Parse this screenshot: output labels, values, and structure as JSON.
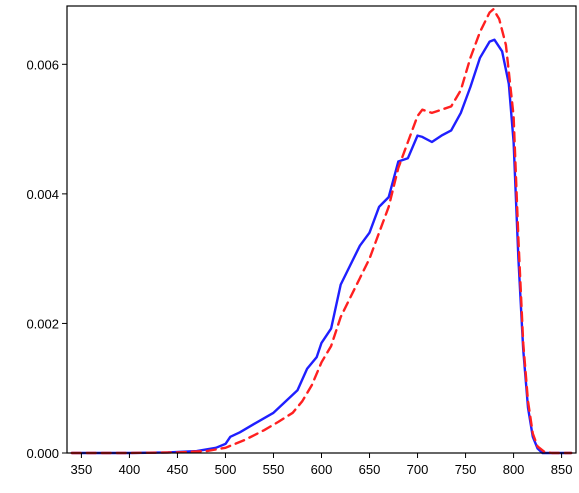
{
  "chart_data": {
    "type": "line",
    "title": "",
    "xlabel": "",
    "ylabel": "",
    "xlim": [
      335,
      865
    ],
    "ylim": [
      0,
      0.0069
    ],
    "x_ticks": [
      {
        "value": 350,
        "label": "350"
      },
      {
        "value": 400,
        "label": "400"
      },
      {
        "value": 450,
        "label": "450"
      },
      {
        "value": 500,
        "label": "500"
      },
      {
        "value": 550,
        "label": "550"
      },
      {
        "value": 600,
        "label": "600"
      },
      {
        "value": 650,
        "label": "650"
      },
      {
        "value": 700,
        "label": "700"
      },
      {
        "value": 750,
        "label": "750"
      },
      {
        "value": 800,
        "label": "800"
      },
      {
        "value": 850,
        "label": "850"
      }
    ],
    "y_ticks": [
      {
        "value": 0.0,
        "label": "0.000"
      },
      {
        "value": 0.002,
        "label": "0.002"
      },
      {
        "value": 0.004,
        "label": "0.004"
      },
      {
        "value": 0.006,
        "label": "0.006"
      }
    ],
    "grid": false,
    "series": [
      {
        "color": "#1f1fff",
        "style": "solid",
        "points": [
          [
            340,
            0
          ],
          [
            400,
            0
          ],
          [
            440,
            1e-05
          ],
          [
            470,
            3e-05
          ],
          [
            490,
            8e-05
          ],
          [
            500,
            0.00014
          ],
          [
            505,
            0.00025
          ],
          [
            515,
            0.00032
          ],
          [
            530,
            0.00045
          ],
          [
            550,
            0.00062
          ],
          [
            565,
            0.00083
          ],
          [
            575,
            0.00097
          ],
          [
            585,
            0.0013
          ],
          [
            595,
            0.00148
          ],
          [
            600,
            0.0017
          ],
          [
            610,
            0.00192
          ],
          [
            620,
            0.0026
          ],
          [
            630,
            0.0029
          ],
          [
            640,
            0.0032
          ],
          [
            650,
            0.0034
          ],
          [
            660,
            0.0038
          ],
          [
            670,
            0.00395
          ],
          [
            680,
            0.0045
          ],
          [
            690,
            0.00455
          ],
          [
            700,
            0.0049
          ],
          [
            705,
            0.00488
          ],
          [
            715,
            0.0048
          ],
          [
            725,
            0.0049
          ],
          [
            735,
            0.00498
          ],
          [
            745,
            0.00525
          ],
          [
            755,
            0.00565
          ],
          [
            765,
            0.0061
          ],
          [
            775,
            0.00635
          ],
          [
            780,
            0.00638
          ],
          [
            788,
            0.0062
          ],
          [
            795,
            0.0057
          ],
          [
            800,
            0.0048
          ],
          [
            805,
            0.003
          ],
          [
            810,
            0.0016
          ],
          [
            815,
            0.0007
          ],
          [
            820,
            0.00025
          ],
          [
            825,
            7e-05
          ],
          [
            830,
            0
          ],
          [
            840,
            0
          ],
          [
            860,
            0
          ]
        ]
      },
      {
        "color": "#ff2020",
        "style": "dashed",
        "points": [
          [
            340,
            0
          ],
          [
            400,
            0
          ],
          [
            450,
            1e-05
          ],
          [
            480,
            3e-05
          ],
          [
            500,
            8e-05
          ],
          [
            520,
            0.0002
          ],
          [
            540,
            0.00035
          ],
          [
            555,
            0.00048
          ],
          [
            570,
            0.00062
          ],
          [
            580,
            0.0008
          ],
          [
            590,
            0.00105
          ],
          [
            600,
            0.0014
          ],
          [
            610,
            0.00165
          ],
          [
            620,
            0.0021
          ],
          [
            630,
            0.0024
          ],
          [
            640,
            0.0027
          ],
          [
            650,
            0.003
          ],
          [
            660,
            0.0034
          ],
          [
            670,
            0.0038
          ],
          [
            680,
            0.0044
          ],
          [
            690,
            0.0048
          ],
          [
            700,
            0.0052
          ],
          [
            705,
            0.0053
          ],
          [
            715,
            0.00525
          ],
          [
            725,
            0.0053
          ],
          [
            735,
            0.00535
          ],
          [
            745,
            0.0056
          ],
          [
            755,
            0.0061
          ],
          [
            765,
            0.0065
          ],
          [
            775,
            0.0068
          ],
          [
            779,
            0.00685
          ],
          [
            785,
            0.0067
          ],
          [
            792,
            0.0063
          ],
          [
            800,
            0.0052
          ],
          [
            805,
            0.0033
          ],
          [
            810,
            0.0017
          ],
          [
            815,
            0.0008
          ],
          [
            820,
            0.0003
          ],
          [
            825,
            0.0001
          ],
          [
            832,
            2e-05
          ],
          [
            840,
            0
          ],
          [
            860,
            0
          ]
        ]
      }
    ]
  }
}
